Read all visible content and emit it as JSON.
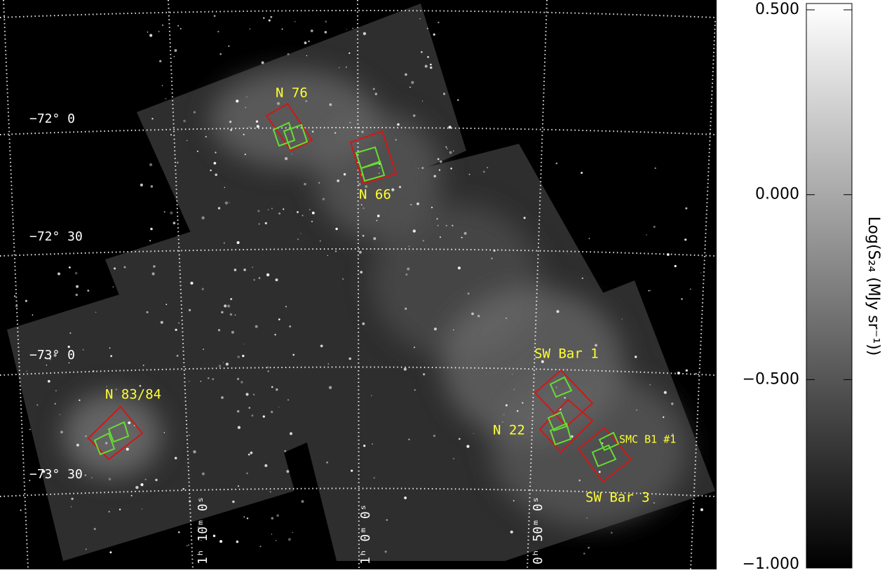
{
  "image": {
    "regions": [
      "N 76",
      "N 66",
      "N 83/84",
      "SW Bar 1",
      "N 22",
      "SMC B1 #1",
      "SW Bar 3"
    ],
    "declination_labels": [
      "−72° 0",
      "−72° 30",
      "−73° 0",
      "−73° 30"
    ],
    "right_ascension_labels": [
      "1ʰ 10ᵐ 0ˢ",
      "1ʰ 0ᵐ 0ˢ",
      "0ʰ 50ᵐ 0ˢ"
    ]
  },
  "colorbar": {
    "label": "Log(S₂₄ (MJy sr⁻¹))",
    "lim": [
      -1.0,
      0.5
    ],
    "ticks": [
      {
        "value": 0.5,
        "label": "0.500"
      },
      {
        "value": 0.0,
        "label": "0.000"
      },
      {
        "value": -0.5,
        "label": "−0.500"
      },
      {
        "value": -1.0,
        "label": "−1.000"
      }
    ]
  }
}
